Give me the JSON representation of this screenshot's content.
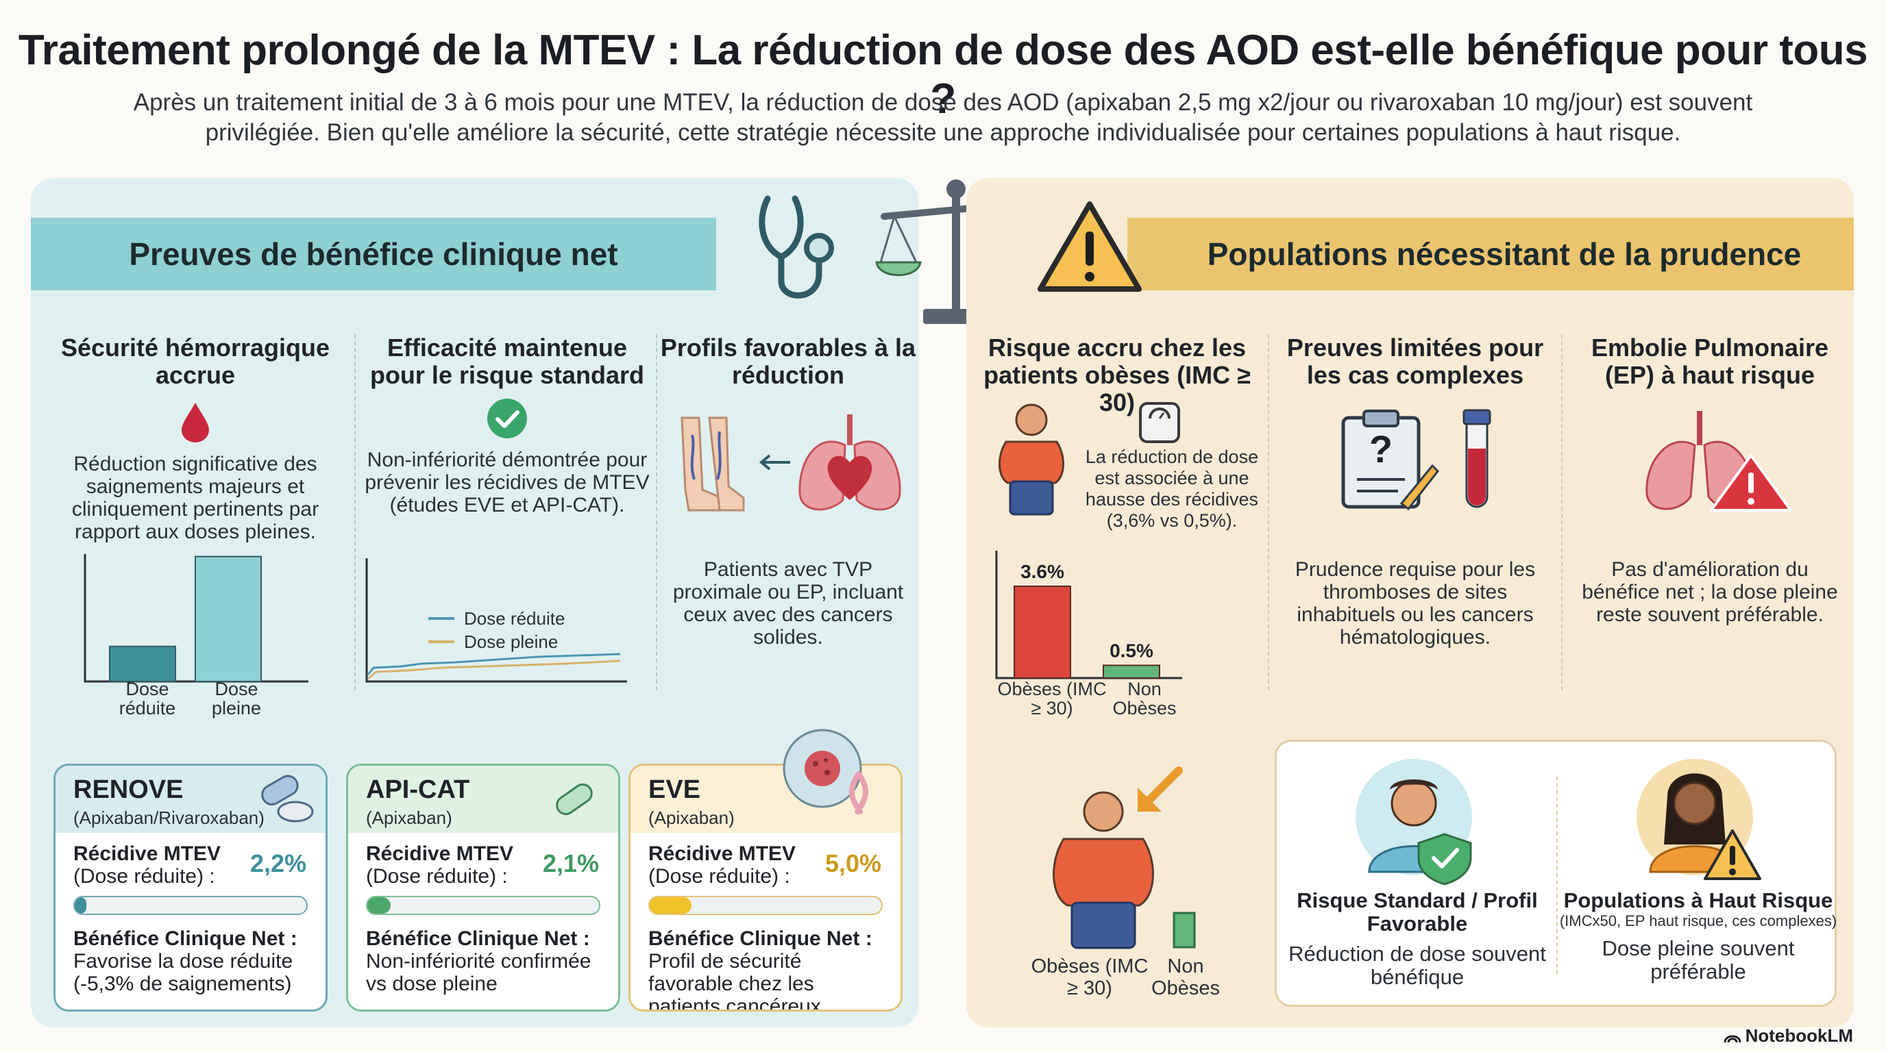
{
  "title": "Traitement prolongé de la MTEV : La réduction de dose des AOD est-elle bénéfique pour tous ?",
  "intro": "Après un traitement initial de 3 à 6 mois pour une MTEV, la réduction de dose des AOD (apixaban 2,5 mg x2/jour ou rivaroxaban 10 mg/jour) est souvent privilégiée. Bien qu'elle améliore la sécurité, cette stratégie nécessite une approche individualisée pour certaines populations à haut risque.",
  "left": {
    "band_title": "Preuves de bénéfice clinique net",
    "col1": {
      "title": "Sécurité hémorragique accrue",
      "text": "Réduction significative des saignements majeurs et cliniquement pertinents par rapport aux doses pleines.",
      "bar_labels": [
        "Dose réduite",
        "Dose pleine"
      ],
      "bar_values": [
        0.16,
        0.57
      ]
    },
    "col2": {
      "title": "Efficacité maintenue pour le risque standard",
      "text": "Non-infériorité démontrée pour prévenir les récidives de MTEV (études EVE et API-CAT).",
      "legend": [
        "Dose réduite",
        "Dose pleine"
      ]
    },
    "col3": {
      "title": "Profils favorables à la réduction",
      "text": "Patients avec TVP proximale ou EP, incluant ceux avec des cancers solides."
    },
    "cards": [
      {
        "name": "RENOVE",
        "sub": "(Apixaban/Rivaroxaban)",
        "recidive_label": "Récidive MTEV",
        "recidive_sub": "(Dose réduite) :",
        "value": "2,2%",
        "fill": 0.05,
        "net_label": "Bénéfice Clinique Net :",
        "net_text": "Favorise la dose réduite (-5,3% de saignements)",
        "border": "#6fa8b3",
        "top_bg": "#d7ecef",
        "fill_color": "#3f8f9b",
        "value_color": "#3f8f9b"
      },
      {
        "name": "API-CAT",
        "sub": "(Apixaban)",
        "recidive_label": "Récidive MTEV",
        "recidive_sub": "(Dose réduite) :",
        "value": "2,1%",
        "fill": 0.1,
        "net_label": "Bénéfice Clinique Net :",
        "net_text": "Non-infériorité confirmée vs dose pleine",
        "border": "#7cbf95",
        "top_bg": "#dff1e3",
        "fill_color": "#4ea76b",
        "value_color": "#3f9a62"
      },
      {
        "name": "EVE",
        "sub": "(Apixaban)",
        "recidive_label": "Récidive MTEV",
        "recidive_sub": "(Dose réduite) :",
        "value": "5,0%",
        "fill": 0.18,
        "net_label": "Bénéfice Clinique Net :",
        "net_text": "Profil de sécurité favorable chez les patients cancéreux",
        "border": "#e3c27a",
        "top_bg": "#fbf0d6",
        "fill_color": "#f0c22a",
        "value_color": "#c99a1e"
      }
    ]
  },
  "right": {
    "band_title": "Populations nécessitant de la prudence",
    "col1": {
      "title": "Risque accru chez les patients obèses (IMC ≥ 30)",
      "text": "La réduction de dose est associée à une hausse des récidives (3,6% vs 0,5%).",
      "bars": [
        {
          "label": "Obèses (IMC ≥ 30)",
          "value": 3.6,
          "display": "3.6%",
          "color": "#d9453b"
        },
        {
          "label": "Non Obèses",
          "value": 0.5,
          "display": "0.5%",
          "color": "#62b679"
        }
      ],
      "lower_labels": [
        "Obèses (IMC ≥ 30)",
        "Non Obèses"
      ]
    },
    "col2": {
      "title": "Preuves limitées pour les cas complexes",
      "text": "Prudence requise pour les thromboses de sites inhabituels ou les cancers hématologiques."
    },
    "col3": {
      "title": "Embolie Pulmonaire (EP) à haut risque",
      "text": "Pas d'amélioration du bénéfice net ; la dose pleine reste souvent préférable."
    },
    "box": {
      "left_title": "Risque Standard / Profil Favorable",
      "left_text": "Réduction de dose souvent bénéfique",
      "right_title": "Populations à Haut Risque",
      "right_sub": "(IMCx50, EP haut risque, ces complexes)",
      "right_text": "Dose pleine souvent préférable"
    }
  },
  "footer": "NotebookLM"
}
